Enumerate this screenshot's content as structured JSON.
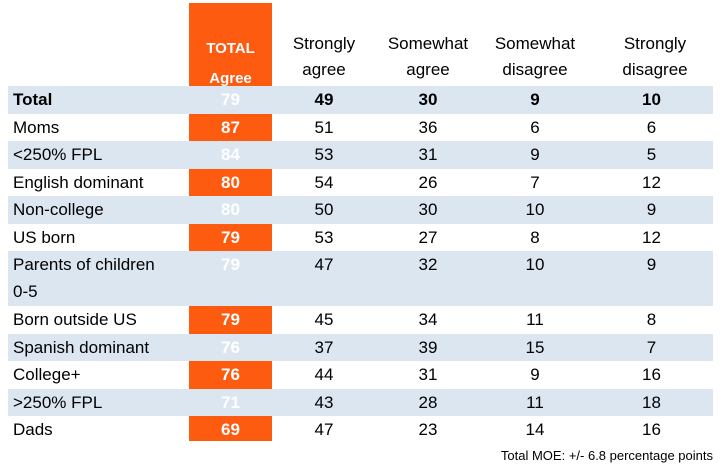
{
  "header": {
    "total_line1": "TOTAL",
    "total_line2": "Agree",
    "col1": [
      "Strongly",
      "agree"
    ],
    "col2": [
      "Somewhat",
      "agree"
    ],
    "col3": [
      "Somewhat",
      "disagree"
    ],
    "col4": [
      "Strongly",
      "disagree"
    ]
  },
  "chart_data": {
    "type": "table",
    "columns": [
      "TOTAL Agree",
      "Strongly agree",
      "Somewhat agree",
      "Somewhat disagree",
      "Strongly disagree"
    ],
    "rows": [
      {
        "label": "Total",
        "values": [
          79,
          49,
          30,
          9,
          10
        ]
      },
      {
        "label": "Moms",
        "values": [
          87,
          51,
          36,
          6,
          6
        ]
      },
      {
        "label": "<250% FPL",
        "values": [
          84,
          53,
          31,
          9,
          5
        ]
      },
      {
        "label": "English dominant",
        "values": [
          80,
          54,
          26,
          7,
          12
        ]
      },
      {
        "label": "Non-college",
        "values": [
          80,
          50,
          30,
          10,
          9
        ]
      },
      {
        "label": "US born",
        "values": [
          79,
          53,
          27,
          8,
          12
        ]
      },
      {
        "label": "Parents of children 0-5",
        "values": [
          79,
          47,
          32,
          10,
          9
        ]
      },
      {
        "label": "Born outside US",
        "values": [
          79,
          45,
          34,
          11,
          8
        ]
      },
      {
        "label": "Spanish dominant",
        "values": [
          76,
          37,
          39,
          15,
          7
        ]
      },
      {
        "label": "College+",
        "values": [
          76,
          44,
          31,
          9,
          16
        ]
      },
      {
        "label": ">250% FPL",
        "values": [
          71,
          43,
          28,
          11,
          18
        ]
      },
      {
        "label": "Dads",
        "values": [
          69,
          47,
          23,
          14,
          16
        ]
      }
    ]
  },
  "colors": {
    "highlight": "#fc5b10",
    "row_shade": "#dce6f1"
  },
  "footnote": "Total MOE: +/- 6.8 percentage points"
}
